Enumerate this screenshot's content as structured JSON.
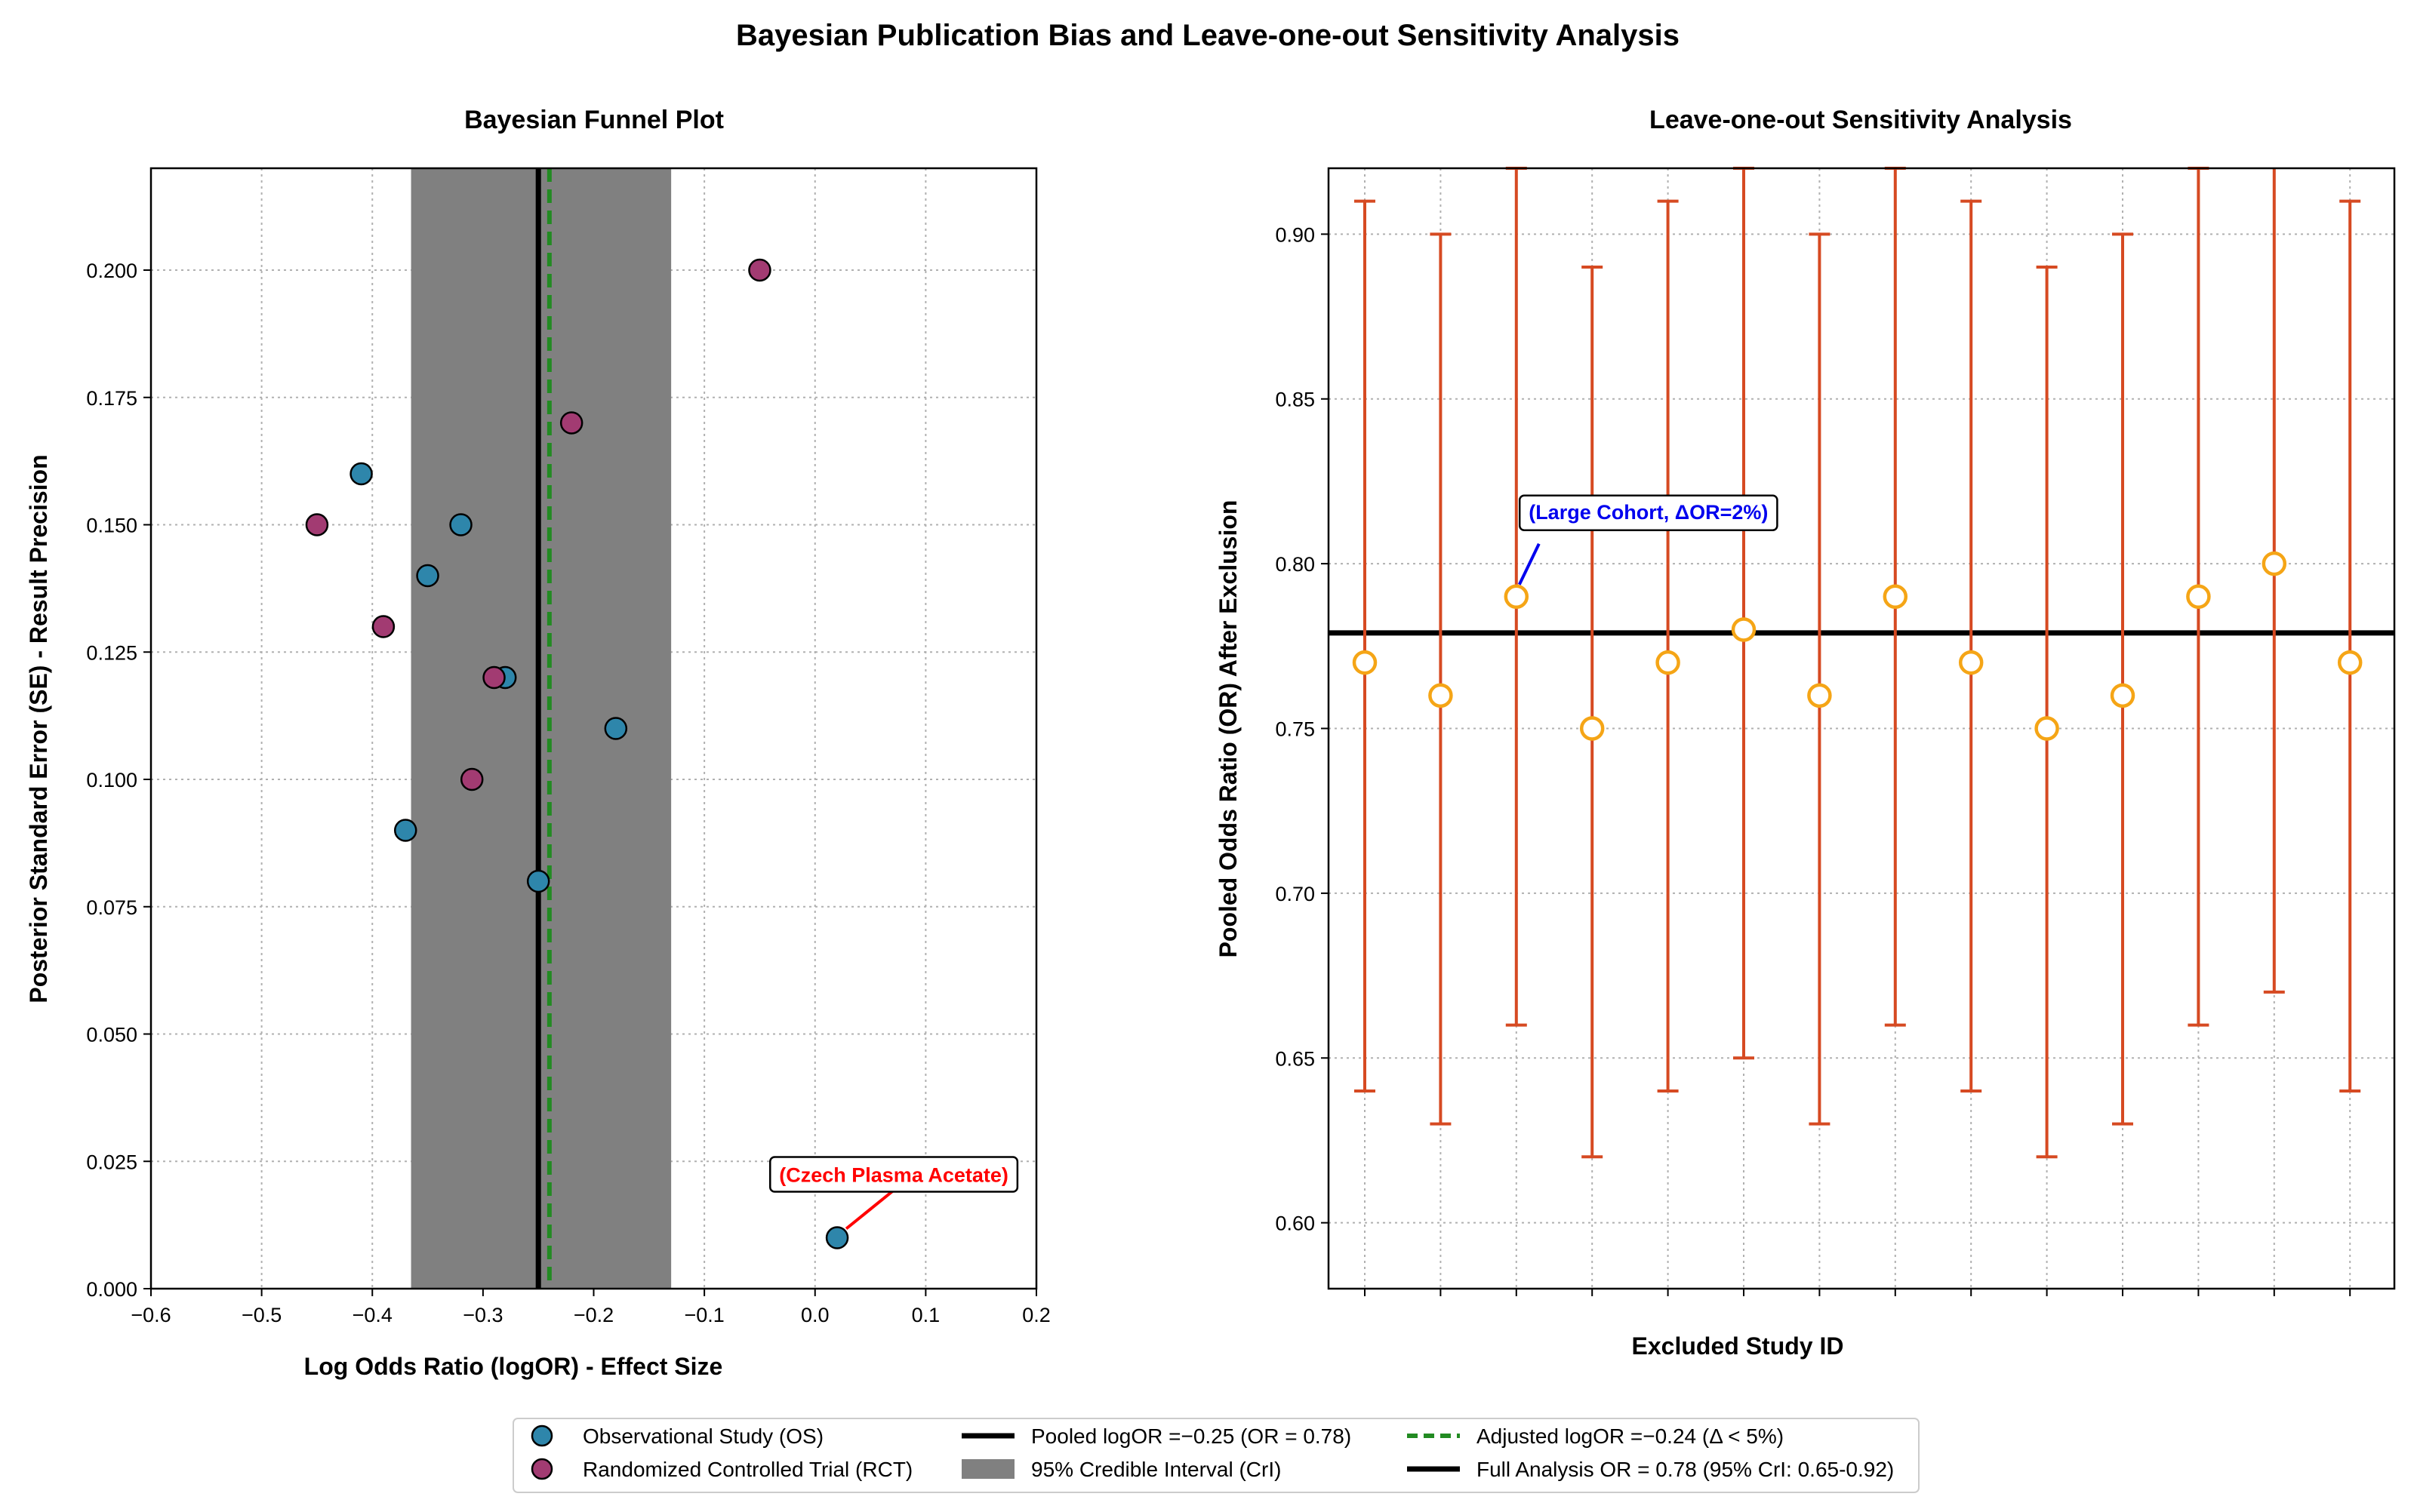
{
  "figure_title": "Bayesian Publication Bias and Leave-one-out Sensitivity Analysis",
  "colors": {
    "os": "#2E86AB",
    "rct": "#A23B72",
    "ci_band": "#808080",
    "pooled_line": "#000000",
    "adjusted_line": "#228B22",
    "errorbar": "#D64A22",
    "loo_marker_edge": "#F5A516",
    "annot_red": "#FF0000",
    "annot_blue": "#0000EE",
    "grid": "#b0b0b0"
  },
  "chart_data": [
    {
      "type": "scatter",
      "title": "Bayesian Funnel Plot",
      "xlabel": "Log Odds Ratio (logOR) - Effect Size",
      "ylabel": "Posterior Standard Error (SE) - Result Precision",
      "xlim": [
        -0.6,
        0.2
      ],
      "ylim": [
        0.0,
        0.22
      ],
      "xticks": [
        -0.6,
        -0.5,
        -0.4,
        -0.3,
        -0.2,
        -0.1,
        0.0,
        0.1,
        0.2
      ],
      "xtick_labels": [
        "−0.6",
        "−0.5",
        "−0.4",
        "−0.3",
        "−0.2",
        "−0.1",
        "0.0",
        "0.1",
        "0.2"
      ],
      "yticks": [
        0.0,
        0.025,
        0.05,
        0.075,
        0.1,
        0.125,
        0.15,
        0.175,
        0.2
      ],
      "ytick_labels": [
        "0.000",
        "0.025",
        "0.050",
        "0.075",
        "0.100",
        "0.125",
        "0.150",
        "0.175",
        "0.200"
      ],
      "grid": true,
      "ci_band": [
        -0.365,
        -0.13
      ],
      "pooled_logor": -0.25,
      "adjusted_logor": -0.24,
      "series": [
        {
          "name": "Observational Study (OS)",
          "points": [
            {
              "x": -0.41,
              "y": 0.16
            },
            {
              "x": -0.32,
              "y": 0.15
            },
            {
              "x": -0.35,
              "y": 0.14
            },
            {
              "x": -0.28,
              "y": 0.12
            },
            {
              "x": -0.18,
              "y": 0.11
            },
            {
              "x": -0.37,
              "y": 0.09
            },
            {
              "x": -0.25,
              "y": 0.08
            },
            {
              "x": 0.02,
              "y": 0.01
            }
          ]
        },
        {
          "name": "Randomized Controlled Trial (RCT)",
          "points": [
            {
              "x": -0.05,
              "y": 0.2
            },
            {
              "x": -0.22,
              "y": 0.17
            },
            {
              "x": -0.45,
              "y": 0.15
            },
            {
              "x": -0.39,
              "y": 0.13
            },
            {
              "x": -0.29,
              "y": 0.12
            },
            {
              "x": -0.31,
              "y": 0.1
            }
          ]
        }
      ],
      "annotation": {
        "text": "(Czech Plasma Acetate)",
        "x": 0.02,
        "y": 0.01
      }
    },
    {
      "type": "errorbar",
      "title": "Leave-one-out Sensitivity Analysis",
      "xlabel": "Excluded Study ID",
      "ylabel": "Pooled Odds Ratio (OR) After Exclusion",
      "ylim": [
        0.58,
        0.92
      ],
      "yticks": [
        0.6,
        0.65,
        0.7,
        0.75,
        0.8,
        0.85,
        0.9
      ],
      "ytick_labels": [
        "0.60",
        "0.65",
        "0.70",
        "0.75",
        "0.80",
        "0.85",
        "0.90"
      ],
      "grid": true,
      "full_or": 0.779,
      "points": [
        {
          "or": 0.77,
          "lo": 0.64,
          "hi": 0.91
        },
        {
          "or": 0.76,
          "lo": 0.63,
          "hi": 0.9
        },
        {
          "or": 0.79,
          "lo": 0.66,
          "hi": 0.92
        },
        {
          "or": 0.75,
          "lo": 0.62,
          "hi": 0.89
        },
        {
          "or": 0.77,
          "lo": 0.64,
          "hi": 0.91
        },
        {
          "or": 0.78,
          "lo": 0.65,
          "hi": 0.92
        },
        {
          "or": 0.76,
          "lo": 0.63,
          "hi": 0.9
        },
        {
          "or": 0.79,
          "lo": 0.66,
          "hi": 0.92
        },
        {
          "or": 0.77,
          "lo": 0.64,
          "hi": 0.91
        },
        {
          "or": 0.75,
          "lo": 0.62,
          "hi": 0.89
        },
        {
          "or": 0.76,
          "lo": 0.63,
          "hi": 0.9
        },
        {
          "or": 0.79,
          "lo": 0.66,
          "hi": 0.92
        },
        {
          "or": 0.8,
          "lo": 0.67,
          "hi": 0.93
        },
        {
          "or": 0.77,
          "lo": 0.64,
          "hi": 0.91
        }
      ],
      "annotation": {
        "text": "(Large Cohort, ΔOR=2%)",
        "index": 2
      }
    }
  ],
  "legend": {
    "placement": "bottom-center",
    "items": [
      {
        "label": "Observational Study (OS)",
        "kind": "os-marker"
      },
      {
        "label": "Randomized Controlled Trial (RCT)",
        "kind": "rct-marker"
      },
      {
        "label": "Pooled logOR =−0.25 (OR = 0.78)",
        "kind": "solid-line"
      },
      {
        "label": "95% Credible Interval (CrI)",
        "kind": "gray-patch"
      },
      {
        "label": "Adjusted logOR =−0.24 (Δ < 5%)",
        "kind": "dashed-line"
      },
      {
        "label": "Full Analysis OR = 0.78 (95% CrI: 0.65-0.92)",
        "kind": "solid-line"
      }
    ]
  }
}
